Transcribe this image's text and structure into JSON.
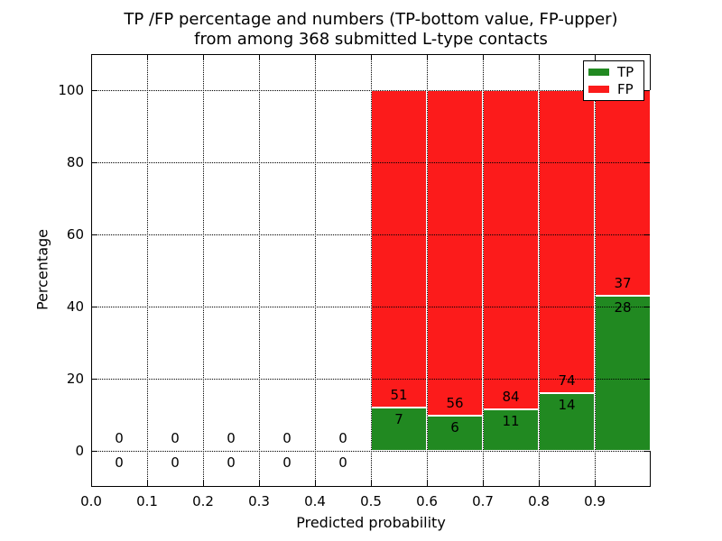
{
  "title": {
    "line1": "TP /FP percentage and numbers (TP-bottom value, FP-upper)",
    "line2": "from among 368 submitted L-type contacts"
  },
  "chart_data": {
    "type": "bar",
    "stacked": true,
    "title": "TP /FP percentage and numbers (TP-bottom value, FP-upper)\nfrom among 368 submitted L-type contacts",
    "xlabel": "Predicted probability",
    "ylabel": "Percentage",
    "xlim": [
      0.0,
      1.0
    ],
    "ylim": [
      -10,
      110
    ],
    "x_ticks": [
      0.0,
      0.1,
      0.2,
      0.3,
      0.4,
      0.5,
      0.6,
      0.7,
      0.8,
      0.9
    ],
    "x_tick_labels": [
      "0.0",
      "0.1",
      "0.2",
      "0.3",
      "0.4",
      "0.5",
      "0.6",
      "0.7",
      "0.8",
      "0.9"
    ],
    "y_ticks": [
      0,
      20,
      40,
      60,
      80,
      100
    ],
    "y_tick_labels": [
      "0",
      "20",
      "40",
      "60",
      "80",
      "100"
    ],
    "grid": "dotted",
    "grid_above_bars": true,
    "legend_position": "upper right",
    "total_contacts": 368,
    "colors": {
      "tp": "#218921",
      "fp": "#FC1B1B"
    },
    "legend": [
      {
        "label": "TP",
        "color": "#218921"
      },
      {
        "label": "FP",
        "color": "#FC1B1B"
      }
    ],
    "bins": [
      {
        "x_range": [
          0.0,
          0.1
        ],
        "tp_count": 0,
        "fp_count": 0,
        "tp_pct": 0,
        "fp_pct": 0
      },
      {
        "x_range": [
          0.1,
          0.2
        ],
        "tp_count": 0,
        "fp_count": 0,
        "tp_pct": 0,
        "fp_pct": 0
      },
      {
        "x_range": [
          0.2,
          0.3
        ],
        "tp_count": 0,
        "fp_count": 0,
        "tp_pct": 0,
        "fp_pct": 0
      },
      {
        "x_range": [
          0.3,
          0.4
        ],
        "tp_count": 0,
        "fp_count": 0,
        "tp_pct": 0,
        "fp_pct": 0
      },
      {
        "x_range": [
          0.4,
          0.5
        ],
        "tp_count": 0,
        "fp_count": 0,
        "tp_pct": 0,
        "fp_pct": 0
      },
      {
        "x_range": [
          0.5,
          0.6
        ],
        "tp_count": 7,
        "fp_count": 51,
        "tp_pct": 12.07,
        "fp_pct": 87.93
      },
      {
        "x_range": [
          0.6,
          0.7
        ],
        "tp_count": 6,
        "fp_count": 56,
        "tp_pct": 9.68,
        "fp_pct": 90.32
      },
      {
        "x_range": [
          0.7,
          0.8
        ],
        "tp_count": 11,
        "fp_count": 84,
        "tp_pct": 11.58,
        "fp_pct": 88.42
      },
      {
        "x_range": [
          0.8,
          0.9
        ],
        "tp_count": 14,
        "fp_count": 74,
        "tp_pct": 15.91,
        "fp_pct": 84.09
      },
      {
        "x_range": [
          0.9,
          1.0
        ],
        "tp_count": 28,
        "fp_count": 37,
        "tp_pct": 43.08,
        "fp_pct": 56.92
      }
    ]
  }
}
